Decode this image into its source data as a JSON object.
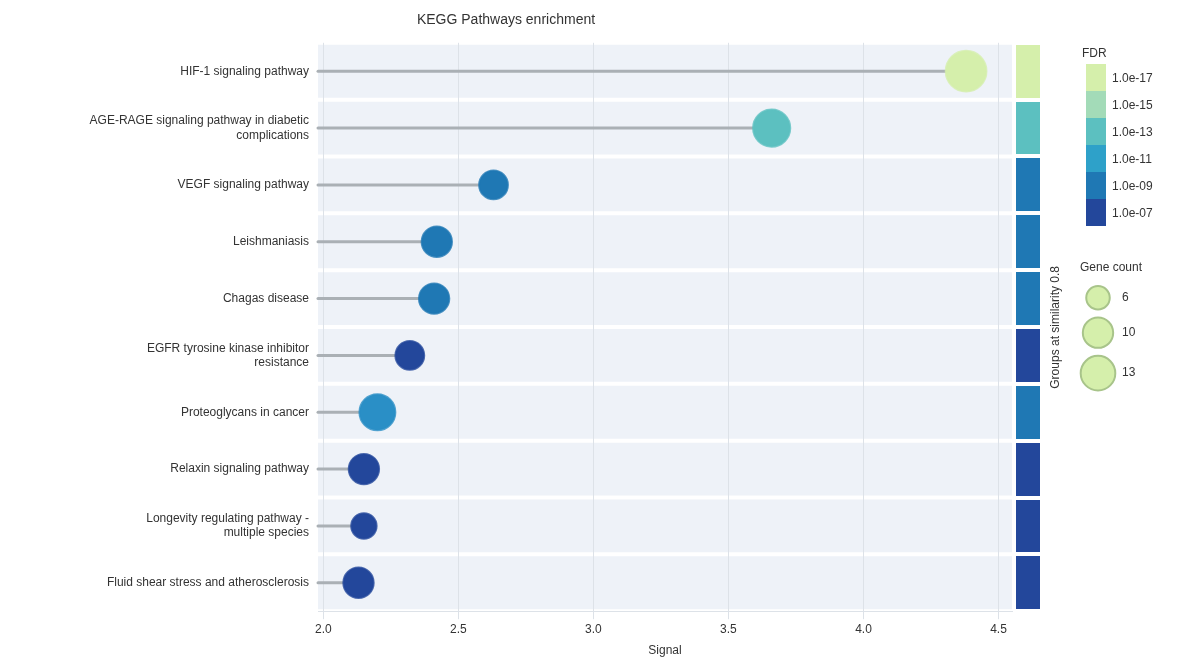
{
  "chart_data": [
    {
      "type": "lollipop",
      "orientation": "horizontal",
      "title": "KEGG Pathways enrichment",
      "xlabel": "Signal",
      "categories": [
        "HIF-1 signaling pathway",
        "AGE-RAGE signaling pathway in diabetic complications",
        "VEGF signaling pathway",
        "Leishmaniasis",
        "Chagas disease",
        "EGFR tyrosine kinase inhibitor resistance",
        "Proteoglycans in cancer",
        "Relaxin signaling pathway",
        "Longevity regulating pathway - multiple species",
        "Fluid shear stress and atherosclerosis"
      ],
      "series": [
        {
          "values": [
            4.38,
            3.66,
            2.63,
            2.42,
            2.41,
            2.32,
            2.2,
            2.15,
            2.15,
            2.13
          ],
          "sizes": [
            18,
            15,
            9,
            10,
            10,
            9,
            14,
            10,
            7,
            10
          ],
          "colors": [
            "#d5efab",
            "#5cc0c0",
            "#1f78b4",
            "#1f78b4",
            "#1f78b4",
            "#23479b",
            "#2a8fc6",
            "#23479b",
            "#23479b",
            "#23479b"
          ]
        }
      ],
      "size_legend": [
        6,
        10,
        13
      ],
      "legend_title": "Gene count",
      "xlim": [
        1.98,
        4.55
      ],
      "xticks": [
        {
          "value": 2,
          "label": "2.0"
        },
        {
          "value": 2.5,
          "label": "2.5"
        },
        {
          "value": 3,
          "label": "3.0"
        },
        {
          "value": 3.5,
          "label": "3.5"
        },
        {
          "value": 4,
          "label": "4.0"
        },
        {
          "value": 4.5,
          "label": "4.5"
        }
      ],
      "grid": "x"
    },
    {
      "type": "other",
      "y2label": "Groups at similarity 0.8",
      "colors": [
        "#d5efab",
        "#5cc0c0",
        "#1f78b4",
        "#1f78b4",
        "#1f78b4",
        "#23479b",
        "#1f78b4",
        "#23479b",
        "#23479b",
        "#23479b"
      ]
    },
    {
      "type": "other",
      "title": "FDR",
      "annotations": [
        "1.0e-17",
        "1.0e-15",
        "1.0e-13",
        "1.0e-11",
        "1.0e-09",
        "1.0e-07"
      ]
    }
  ]
}
